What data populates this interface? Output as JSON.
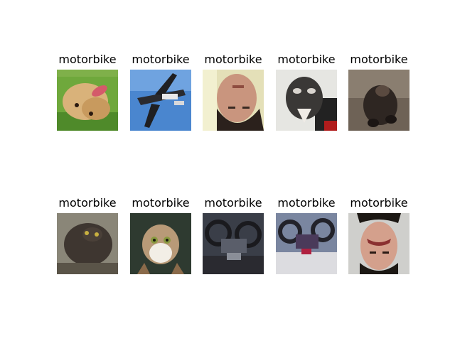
{
  "panels": [
    {
      "title": "motorbike",
      "depicts": "dog"
    },
    {
      "title": "motorbike",
      "depicts": "airplane"
    },
    {
      "title": "motorbike",
      "depicts": "face"
    },
    {
      "title": "motorbike",
      "depicts": "cat"
    },
    {
      "title": "motorbike",
      "depicts": "dog"
    },
    {
      "title": "motorbike",
      "depicts": "cat"
    },
    {
      "title": "motorbike",
      "depicts": "cat"
    },
    {
      "title": "motorbike",
      "depicts": "motorbike"
    },
    {
      "title": "motorbike",
      "depicts": "motorbike"
    },
    {
      "title": "motorbike",
      "depicts": "face"
    }
  ]
}
